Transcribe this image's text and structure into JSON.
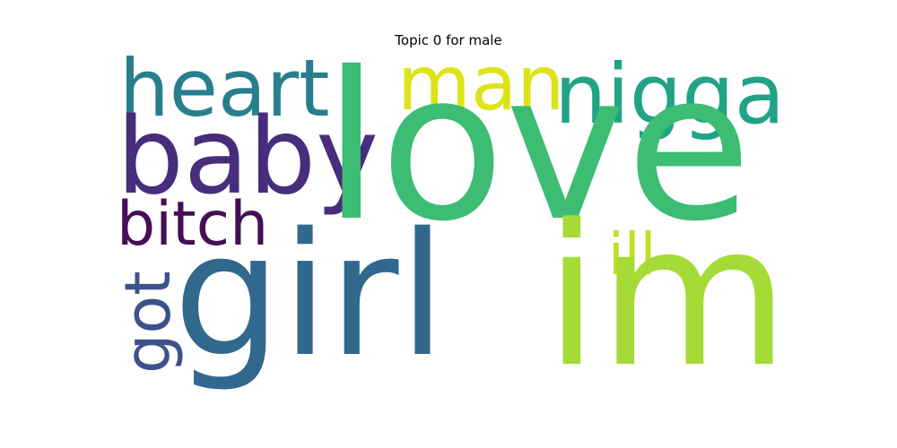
{
  "title": "Topic 0 for male",
  "words": [
    {
      "key": "love",
      "text": "love",
      "color": "#3dbc74"
    },
    {
      "key": "girl",
      "text": "girl",
      "color": "#31688e"
    },
    {
      "key": "im",
      "text": "im",
      "color": "#a5db36"
    },
    {
      "key": "baby",
      "text": "baby",
      "color": "#472d7b"
    },
    {
      "key": "nigga",
      "text": "nigga",
      "color": "#20a386"
    },
    {
      "key": "heart",
      "text": "heart",
      "color": "#277f8e"
    },
    {
      "key": "man",
      "text": "man",
      "color": "#dde318"
    },
    {
      "key": "bitch",
      "text": "bitch",
      "color": "#440f56"
    },
    {
      "key": "ill",
      "text": "ill",
      "color": "#c0df25"
    },
    {
      "key": "got",
      "text": "got",
      "color": "#3b528b",
      "orientation": "vertical"
    }
  ]
}
